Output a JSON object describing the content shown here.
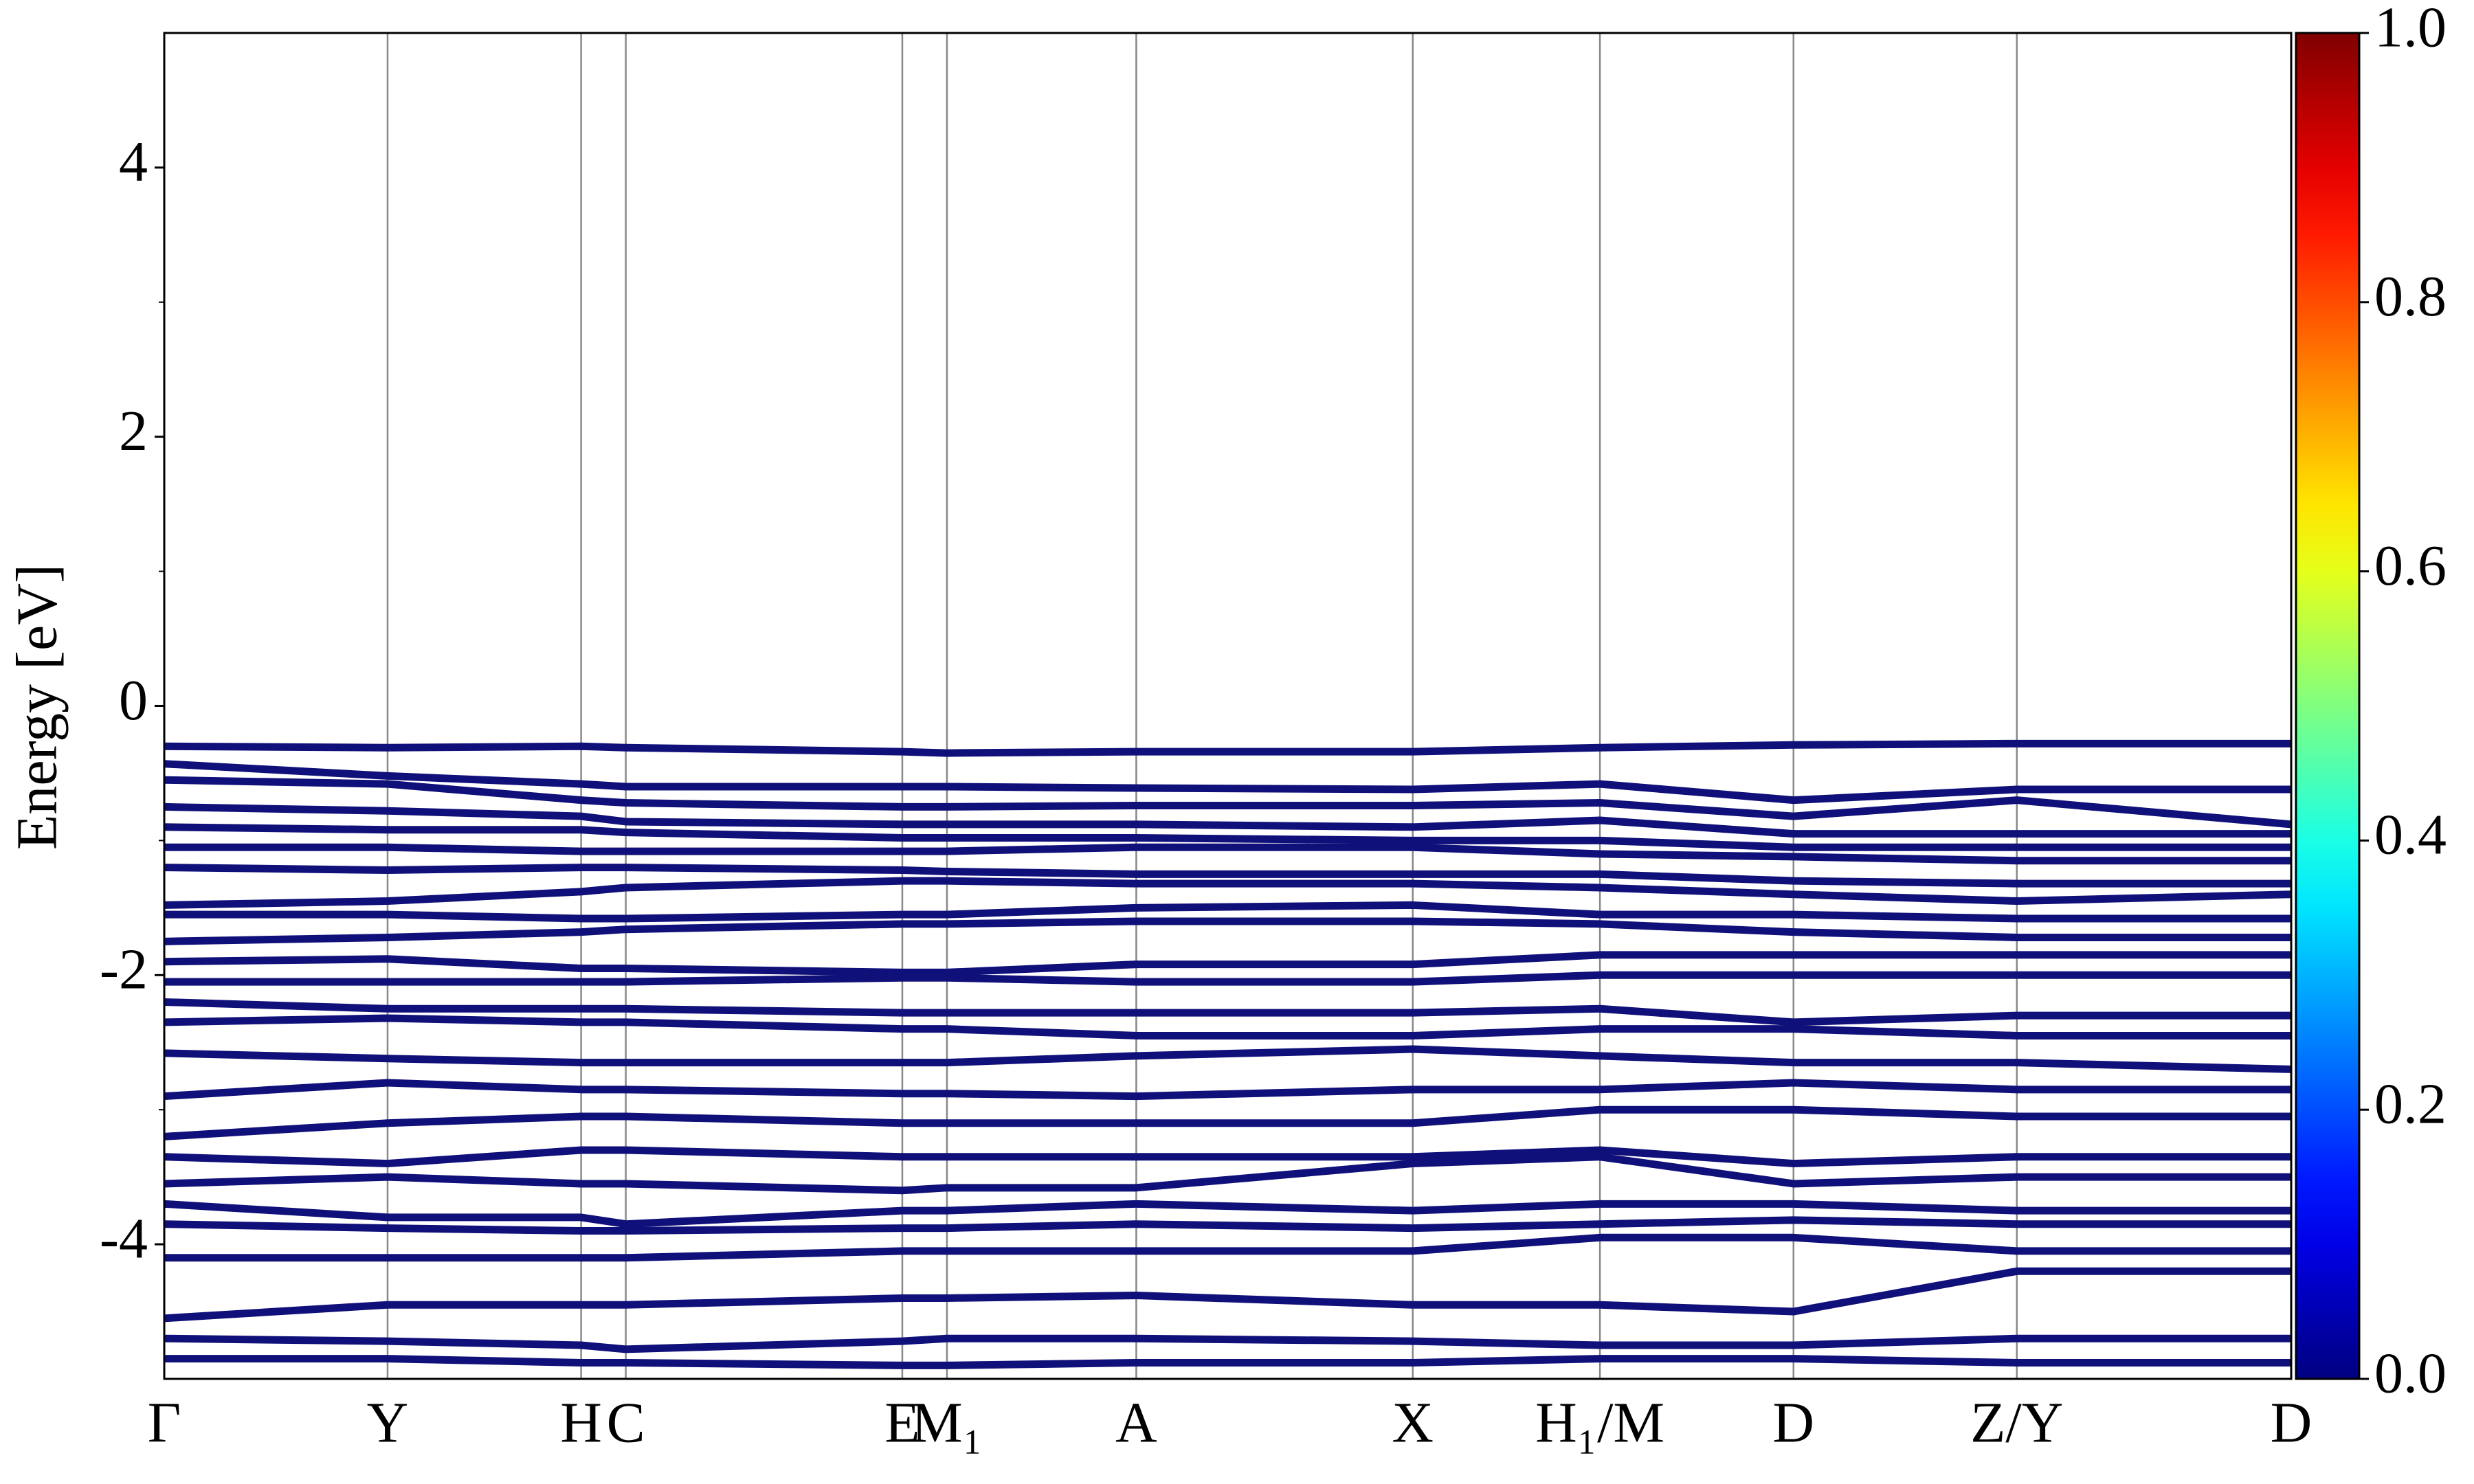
{
  "chart_data": {
    "type": "line",
    "ylabel": "Energy [eV]",
    "ylim": [
      -5,
      5
    ],
    "yticks": [
      -4,
      -2,
      0,
      2,
      4
    ],
    "yminorticks": [
      -3,
      -1,
      1,
      3
    ],
    "xlim": [
      0,
      1
    ],
    "xticks": [
      {
        "value": 0,
        "label": "Γ"
      },
      {
        "value": 0.105,
        "label": "Y"
      },
      {
        "value": 0.196,
        "label": "H"
      },
      {
        "value": 0.217,
        "label": "C"
      },
      {
        "value": 0.347,
        "label": "E"
      },
      {
        "value": 0.368,
        "label": "M₁"
      },
      {
        "value": 0.457,
        "label": "A"
      },
      {
        "value": 0.587,
        "label": "X"
      },
      {
        "value": 0.675,
        "label": "H₁/M"
      },
      {
        "value": 0.766,
        "label": "D"
      },
      {
        "value": 0.871,
        "label": "Z/Y"
      },
      {
        "value": 1,
        "label": "D"
      }
    ],
    "x": [
      0,
      0.105,
      0.196,
      0.217,
      0.347,
      0.368,
      0.457,
      0.587,
      0.675,
      0.766,
      0.871,
      1
    ],
    "color": "#10107a",
    "colormap": "jet",
    "clim": [
      0,
      1
    ],
    "cticks": [
      {
        "value": 0,
        "label": "0.0"
      },
      {
        "value": 0.2,
        "label": "0.2"
      },
      {
        "value": 0.4,
        "label": "0.4"
      },
      {
        "value": 0.6,
        "label": "0.6"
      },
      {
        "value": 0.8,
        "label": "0.8"
      },
      {
        "value": 1,
        "label": "1.0"
      }
    ],
    "series": [
      {
        "values": [
          -0.3,
          -0.31,
          -0.3,
          -0.31,
          -0.34,
          -0.35,
          -0.34,
          -0.34,
          -0.31,
          -0.29,
          -0.28,
          -0.28
        ]
      },
      {
        "values": [
          -0.43,
          -0.52,
          -0.58,
          -0.6,
          -0.6,
          -0.6,
          -0.61,
          -0.62,
          -0.58,
          -0.7,
          -0.62,
          -0.62
        ]
      },
      {
        "values": [
          -0.55,
          -0.58,
          -0.7,
          -0.72,
          -0.75,
          -0.75,
          -0.74,
          -0.74,
          -0.72,
          -0.82,
          -0.7,
          -0.88
        ]
      },
      {
        "values": [
          -0.75,
          -0.78,
          -0.82,
          -0.86,
          -0.88,
          -0.88,
          -0.88,
          -0.9,
          -0.85,
          -0.95,
          -0.95,
          -0.95
        ]
      },
      {
        "values": [
          -0.9,
          -0.92,
          -0.92,
          -0.94,
          -0.98,
          -0.98,
          -0.98,
          -1.0,
          -1.0,
          -1.05,
          -1.05,
          -1.05
        ]
      },
      {
        "values": [
          -1.05,
          -1.05,
          -1.08,
          -1.08,
          -1.08,
          -1.08,
          -1.05,
          -1.05,
          -1.1,
          -1.12,
          -1.15,
          -1.15
        ]
      },
      {
        "values": [
          -1.2,
          -1.22,
          -1.2,
          -1.2,
          -1.22,
          -1.23,
          -1.25,
          -1.25,
          -1.25,
          -1.3,
          -1.32,
          -1.32
        ]
      },
      {
        "values": [
          -1.48,
          -1.45,
          -1.38,
          -1.35,
          -1.3,
          -1.3,
          -1.32,
          -1.32,
          -1.35,
          -1.4,
          -1.45,
          -1.4
        ]
      },
      {
        "values": [
          -1.55,
          -1.55,
          -1.58,
          -1.58,
          -1.55,
          -1.55,
          -1.5,
          -1.48,
          -1.55,
          -1.55,
          -1.58,
          -1.58
        ]
      },
      {
        "values": [
          -1.75,
          -1.72,
          -1.68,
          -1.66,
          -1.62,
          -1.62,
          -1.6,
          -1.6,
          -1.62,
          -1.68,
          -1.72,
          -1.72
        ]
      },
      {
        "values": [
          -1.9,
          -1.88,
          -1.95,
          -1.95,
          -1.98,
          -1.98,
          -1.92,
          -1.92,
          -1.85,
          -1.85,
          -1.85,
          -1.85
        ]
      },
      {
        "values": [
          -2.05,
          -2.05,
          -2.05,
          -2.05,
          -2.02,
          -2.02,
          -2.05,
          -2.05,
          -2.0,
          -2.0,
          -2.0,
          -2.0
        ]
      },
      {
        "values": [
          -2.2,
          -2.25,
          -2.25,
          -2.25,
          -2.28,
          -2.28,
          -2.28,
          -2.28,
          -2.25,
          -2.35,
          -2.3,
          -2.3
        ]
      },
      {
        "values": [
          -2.35,
          -2.32,
          -2.35,
          -2.35,
          -2.4,
          -2.4,
          -2.45,
          -2.45,
          -2.4,
          -2.4,
          -2.45,
          -2.45
        ]
      },
      {
        "values": [
          -2.58,
          -2.62,
          -2.65,
          -2.65,
          -2.65,
          -2.65,
          -2.6,
          -2.55,
          -2.6,
          -2.65,
          -2.65,
          -2.7
        ]
      },
      {
        "values": [
          -2.9,
          -2.8,
          -2.85,
          -2.85,
          -2.88,
          -2.88,
          -2.9,
          -2.85,
          -2.85,
          -2.8,
          -2.85,
          -2.85
        ]
      },
      {
        "values": [
          -3.2,
          -3.1,
          -3.05,
          -3.05,
          -3.1,
          -3.1,
          -3.1,
          -3.1,
          -3.0,
          -3.0,
          -3.05,
          -3.05
        ]
      },
      {
        "values": [
          -3.35,
          -3.4,
          -3.3,
          -3.3,
          -3.35,
          -3.35,
          -3.35,
          -3.35,
          -3.3,
          -3.4,
          -3.35,
          -3.35
        ]
      },
      {
        "values": [
          -3.55,
          -3.5,
          -3.55,
          -3.55,
          -3.6,
          -3.58,
          -3.58,
          -3.4,
          -3.35,
          -3.55,
          -3.5,
          -3.5
        ]
      },
      {
        "values": [
          -3.7,
          -3.8,
          -3.8,
          -3.85,
          -3.75,
          -3.75,
          -3.7,
          -3.75,
          -3.7,
          -3.7,
          -3.75,
          -3.75
        ]
      },
      {
        "values": [
          -3.85,
          -3.88,
          -3.9,
          -3.9,
          -3.88,
          -3.88,
          -3.85,
          -3.88,
          -3.85,
          -3.82,
          -3.85,
          -3.85
        ]
      },
      {
        "values": [
          -4.1,
          -4.1,
          -4.1,
          -4.1,
          -4.05,
          -4.05,
          -4.05,
          -4.05,
          -3.95,
          -3.95,
          -4.05,
          -4.05
        ]
      },
      {
        "values": [
          -4.55,
          -4.45,
          -4.45,
          -4.45,
          -4.4,
          -4.4,
          -4.38,
          -4.45,
          -4.45,
          -4.5,
          -4.2,
          -4.2
        ]
      },
      {
        "values": [
          -4.7,
          -4.72,
          -4.75,
          -4.78,
          -4.72,
          -4.7,
          -4.7,
          -4.72,
          -4.75,
          -4.75,
          -4.7,
          -4.7
        ]
      },
      {
        "values": [
          -4.85,
          -4.85,
          -4.88,
          -4.88,
          -4.9,
          -4.9,
          -4.88,
          -4.88,
          -4.85,
          -4.85,
          -4.88,
          -4.88
        ]
      }
    ]
  }
}
